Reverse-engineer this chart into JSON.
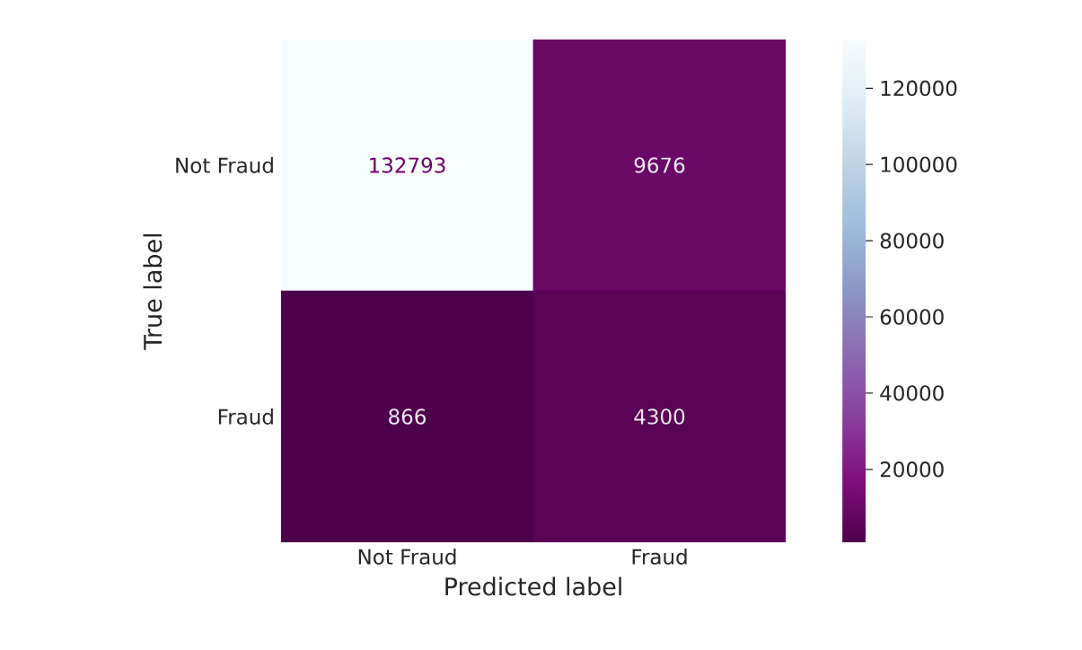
{
  "chart_data": {
    "type": "heatmap",
    "xlabel": "Predicted label",
    "ylabel": "True label",
    "categories": [
      "Not Fraud",
      "Fraud"
    ],
    "y_categories": [
      "Not Fraud",
      "Fraud"
    ],
    "cells": [
      [
        132793,
        9676
      ],
      [
        866,
        4300
      ]
    ],
    "data_labels": true,
    "clim": [
      866,
      132793
    ],
    "cticks": [
      20000,
      40000,
      60000,
      80000,
      100000,
      120000
    ]
  }
}
